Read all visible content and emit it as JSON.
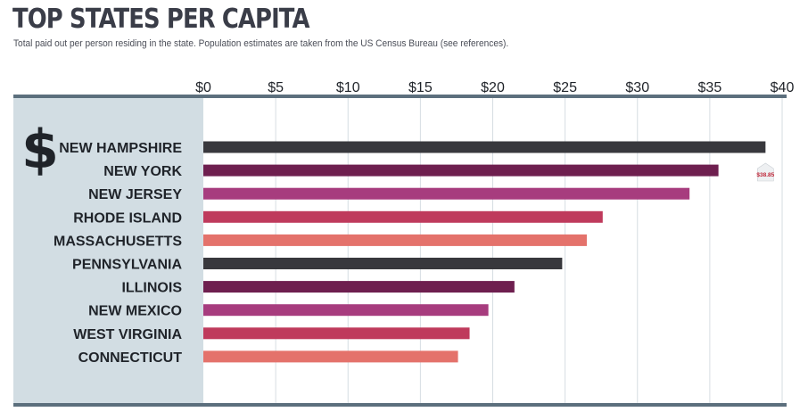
{
  "header": {
    "title": "TOP STATES PER CAPITA",
    "subtitle": "Total paid out per person residing in the state.  Population estimates are taken from the US Census Bureau (see references)."
  },
  "icon": {
    "name": "dollar-sign-icon",
    "glyph": "$"
  },
  "chart_data": {
    "type": "bar",
    "orientation": "horizontal",
    "categories": [
      "NEW HAMPSHIRE",
      "NEW YORK",
      "NEW JERSEY",
      "RHODE ISLAND",
      "MASSACHUSETTS",
      "PENNSYLVANIA",
      "ILLINOIS",
      "NEW MEXICO",
      "WEST VIRGINIA",
      "CONNECTICUT"
    ],
    "values": [
      38.85,
      35.6,
      33.6,
      27.6,
      26.5,
      24.8,
      21.5,
      19.7,
      18.4,
      17.6
    ],
    "bar_colors": [
      "#38383d",
      "#6e1f4f",
      "#a73c7e",
      "#bf3a5c",
      "#e4726b",
      "#38383d",
      "#6e1f4f",
      "#a73c7e",
      "#bf3a5c",
      "#e4726b"
    ],
    "xlim": [
      0,
      40
    ],
    "x_ticks": [
      0,
      5,
      10,
      15,
      20,
      25,
      30,
      35,
      40
    ],
    "x_tick_labels": [
      "$0",
      "$5",
      "$10",
      "$15",
      "$20",
      "$25",
      "$30",
      "$35",
      "$40"
    ],
    "annotation": {
      "category": "NEW HAMPSHIRE",
      "text": "$38.85"
    },
    "xlabel": "",
    "ylabel": "",
    "grid": true
  },
  "colors": {
    "axis_line": "#5c6f7d",
    "label_panel": "#d2dde3",
    "gridline": "#d6dde2",
    "text": "#1f2329",
    "annotation_text": "#c0283a"
  }
}
